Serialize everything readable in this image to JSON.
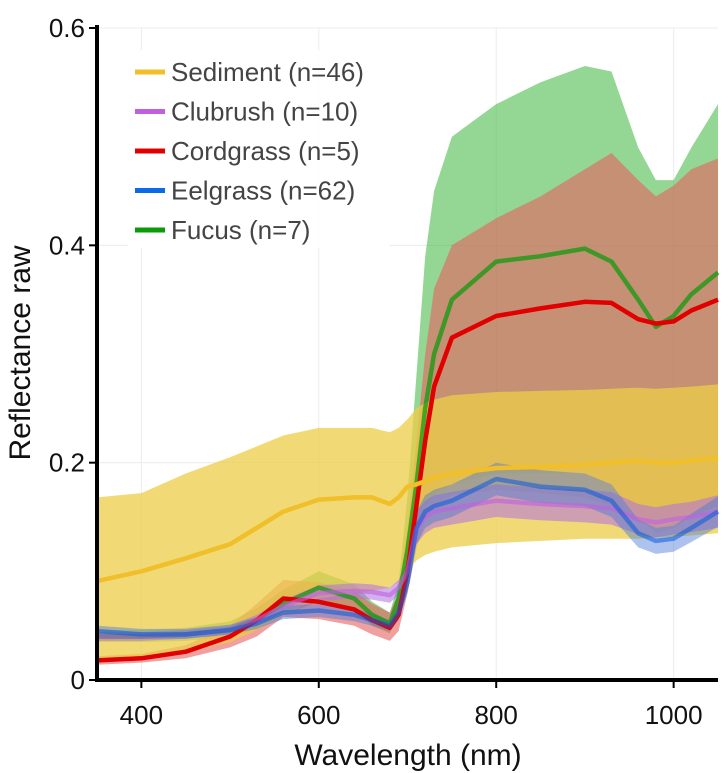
{
  "chart_data": {
    "type": "line",
    "xlabel": "Wavelength (nm)",
    "ylabel": "Reflectance raw",
    "xlim": [
      350,
      1050
    ],
    "ylim": [
      0,
      0.6
    ],
    "x_ticks": [
      {
        "value": 400,
        "label": "400"
      },
      {
        "value": 600,
        "label": "600"
      },
      {
        "value": 800,
        "label": "800"
      },
      {
        "value": 1000,
        "label": "1000"
      }
    ],
    "y_ticks": [
      {
        "value": 0,
        "label": "0"
      },
      {
        "value": 0.2,
        "label": "0.2"
      },
      {
        "value": 0.4,
        "label": "0.4"
      },
      {
        "value": 0.6,
        "label": "0.6"
      }
    ],
    "grid": true,
    "legend_position": "top-left",
    "x": [
      350,
      400,
      450,
      500,
      530,
      560,
      600,
      640,
      660,
      680,
      690,
      700,
      710,
      720,
      730,
      750,
      800,
      850,
      900,
      930,
      960,
      980,
      1000,
      1020,
      1050
    ],
    "series": [
      {
        "name": "Fucus (n=7)",
        "color": "#0a9a0a",
        "band_color": "#3cb43c",
        "mean": [
          0.04,
          0.04,
          0.042,
          0.046,
          0.055,
          0.07,
          0.085,
          0.075,
          0.06,
          0.052,
          0.075,
          0.12,
          0.18,
          0.25,
          0.3,
          0.35,
          0.385,
          0.39,
          0.397,
          0.385,
          0.35,
          0.325,
          0.335,
          0.355,
          0.375
        ],
        "lower": [
          0.035,
          0.035,
          0.036,
          0.04,
          0.046,
          0.06,
          0.072,
          0.065,
          0.05,
          0.043,
          0.06,
          0.095,
          0.13,
          0.16,
          0.17,
          0.18,
          0.19,
          0.19,
          0.19,
          0.18,
          0.15,
          0.135,
          0.14,
          0.15,
          0.16
        ],
        "upper": [
          0.046,
          0.046,
          0.048,
          0.054,
          0.066,
          0.083,
          0.1,
          0.088,
          0.072,
          0.062,
          0.09,
          0.17,
          0.28,
          0.39,
          0.45,
          0.5,
          0.53,
          0.55,
          0.565,
          0.56,
          0.49,
          0.46,
          0.46,
          0.49,
          0.53
        ]
      },
      {
        "name": "Cordgrass (n=5)",
        "color": "#e00000",
        "band_color": "#e86060",
        "mean": [
          0.018,
          0.02,
          0.026,
          0.04,
          0.055,
          0.075,
          0.072,
          0.065,
          0.055,
          0.048,
          0.06,
          0.1,
          0.16,
          0.22,
          0.27,
          0.315,
          0.335,
          0.342,
          0.348,
          0.347,
          0.332,
          0.328,
          0.33,
          0.34,
          0.35
        ],
        "lower": [
          0.014,
          0.016,
          0.02,
          0.03,
          0.04,
          0.058,
          0.056,
          0.05,
          0.042,
          0.036,
          0.045,
          0.08,
          0.12,
          0.15,
          0.16,
          0.17,
          0.175,
          0.172,
          0.168,
          0.16,
          0.145,
          0.14,
          0.142,
          0.15,
          0.16
        ],
        "upper": [
          0.022,
          0.024,
          0.032,
          0.05,
          0.07,
          0.092,
          0.09,
          0.082,
          0.07,
          0.062,
          0.08,
          0.14,
          0.22,
          0.3,
          0.36,
          0.4,
          0.425,
          0.445,
          0.47,
          0.485,
          0.46,
          0.445,
          0.455,
          0.47,
          0.48
        ]
      },
      {
        "name": "Sediment (n=46)",
        "color": "#f0bf2a",
        "band_color": "#ecce48",
        "mean": [
          0.091,
          0.1,
          0.112,
          0.125,
          0.14,
          0.155,
          0.166,
          0.168,
          0.168,
          0.162,
          0.168,
          0.178,
          0.18,
          0.183,
          0.186,
          0.19,
          0.195,
          0.196,
          0.198,
          0.2,
          0.202,
          0.2,
          0.2,
          0.202,
          0.204
        ],
        "lower": [
          0.018,
          0.02,
          0.025,
          0.035,
          0.046,
          0.06,
          0.075,
          0.08,
          0.082,
          0.085,
          0.09,
          0.1,
          0.11,
          0.115,
          0.118,
          0.122,
          0.126,
          0.128,
          0.13,
          0.13,
          0.13,
          0.131,
          0.132,
          0.133,
          0.135
        ],
        "upper": [
          0.168,
          0.172,
          0.19,
          0.205,
          0.215,
          0.225,
          0.232,
          0.232,
          0.232,
          0.228,
          0.232,
          0.24,
          0.25,
          0.255,
          0.258,
          0.262,
          0.265,
          0.266,
          0.267,
          0.268,
          0.269,
          0.268,
          0.269,
          0.27,
          0.272
        ]
      },
      {
        "name": "Clubrush (n=10)",
        "color": "#c060e0",
        "band_color": "#b070e0",
        "mean": [
          0.04,
          0.04,
          0.042,
          0.046,
          0.055,
          0.068,
          0.08,
          0.082,
          0.081,
          0.078,
          0.085,
          0.1,
          0.14,
          0.15,
          0.155,
          0.158,
          0.165,
          0.162,
          0.16,
          0.158,
          0.148,
          0.145,
          0.148,
          0.15,
          0.155
        ],
        "lower": [
          0.036,
          0.036,
          0.038,
          0.042,
          0.05,
          0.062,
          0.073,
          0.075,
          0.074,
          0.071,
          0.078,
          0.092,
          0.125,
          0.135,
          0.14,
          0.143,
          0.15,
          0.147,
          0.145,
          0.143,
          0.134,
          0.131,
          0.134,
          0.136,
          0.14
        ],
        "upper": [
          0.044,
          0.044,
          0.046,
          0.05,
          0.06,
          0.074,
          0.087,
          0.089,
          0.088,
          0.085,
          0.092,
          0.11,
          0.155,
          0.165,
          0.17,
          0.173,
          0.18,
          0.177,
          0.175,
          0.173,
          0.162,
          0.159,
          0.162,
          0.164,
          0.17
        ]
      },
      {
        "name": "Eelgrass (n=62)",
        "color": "#0a5ad8",
        "band_color": "#4a7ad8",
        "mean": [
          0.045,
          0.042,
          0.042,
          0.046,
          0.052,
          0.062,
          0.064,
          0.06,
          0.055,
          0.05,
          0.062,
          0.09,
          0.14,
          0.155,
          0.16,
          0.165,
          0.185,
          0.178,
          0.175,
          0.165,
          0.135,
          0.128,
          0.13,
          0.14,
          0.155
        ],
        "lower": [
          0.04,
          0.038,
          0.038,
          0.042,
          0.047,
          0.056,
          0.058,
          0.054,
          0.05,
          0.045,
          0.055,
          0.08,
          0.125,
          0.14,
          0.145,
          0.15,
          0.17,
          0.163,
          0.16,
          0.15,
          0.122,
          0.116,
          0.118,
          0.127,
          0.141
        ],
        "upper": [
          0.05,
          0.047,
          0.047,
          0.051,
          0.058,
          0.068,
          0.07,
          0.066,
          0.061,
          0.055,
          0.069,
          0.1,
          0.155,
          0.17,
          0.175,
          0.18,
          0.2,
          0.193,
          0.19,
          0.18,
          0.148,
          0.14,
          0.142,
          0.153,
          0.169
        ]
      }
    ],
    "legend": [
      {
        "label": "Sediment (n=46)",
        "color": "#f0bf2a"
      },
      {
        "label": "Clubrush (n=10)",
        "color": "#c060e0"
      },
      {
        "label": "Cordgrass (n=5)",
        "color": "#e00000"
      },
      {
        "label": "Eelgrass (n=62)",
        "color": "#0a6ae8"
      },
      {
        "label": "Fucus (n=7)",
        "color": "#0a9a0a"
      }
    ]
  }
}
